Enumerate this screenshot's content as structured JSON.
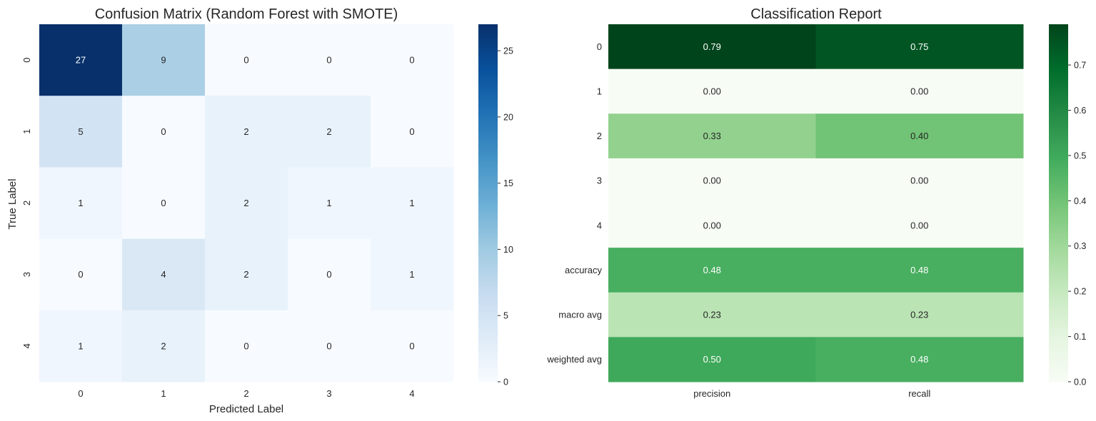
{
  "chart_data": [
    {
      "type": "heatmap",
      "title": "Confusion Matrix (Random Forest with SMOTE)",
      "xlabel": "Predicted Label",
      "ylabel": "True Label",
      "x_categories": [
        "0",
        "1",
        "2",
        "3",
        "4"
      ],
      "y_categories": [
        "0",
        "1",
        "2",
        "3",
        "4"
      ],
      "values": [
        [
          27,
          9,
          0,
          0,
          0
        ],
        [
          5,
          0,
          2,
          2,
          0
        ],
        [
          1,
          0,
          2,
          1,
          1
        ],
        [
          0,
          4,
          2,
          0,
          1
        ],
        [
          1,
          2,
          0,
          0,
          0
        ]
      ],
      "value_format": "int",
      "colormap": "Blues",
      "colorbar": {
        "range": [
          0,
          27
        ],
        "ticks": [
          0,
          5,
          10,
          15,
          20,
          25
        ]
      }
    },
    {
      "type": "heatmap",
      "title": "Classification Report",
      "xlabel": "",
      "ylabel": "",
      "x_categories": [
        "precision",
        "recall"
      ],
      "y_categories": [
        "0",
        "1",
        "2",
        "3",
        "4",
        "accuracy",
        "macro avg",
        "weighted avg"
      ],
      "values": [
        [
          0.79,
          0.75
        ],
        [
          0.0,
          0.0
        ],
        [
          0.33,
          0.4
        ],
        [
          0.0,
          0.0
        ],
        [
          0.0,
          0.0
        ],
        [
          0.48,
          0.48
        ],
        [
          0.23,
          0.23
        ],
        [
          0.5,
          0.48
        ]
      ],
      "value_format": "2f",
      "colormap": "Greens",
      "colorbar": {
        "range": [
          0,
          0.79
        ],
        "ticks": [
          0.0,
          0.1,
          0.2,
          0.3,
          0.4,
          0.5,
          0.6,
          0.7
        ]
      }
    }
  ]
}
